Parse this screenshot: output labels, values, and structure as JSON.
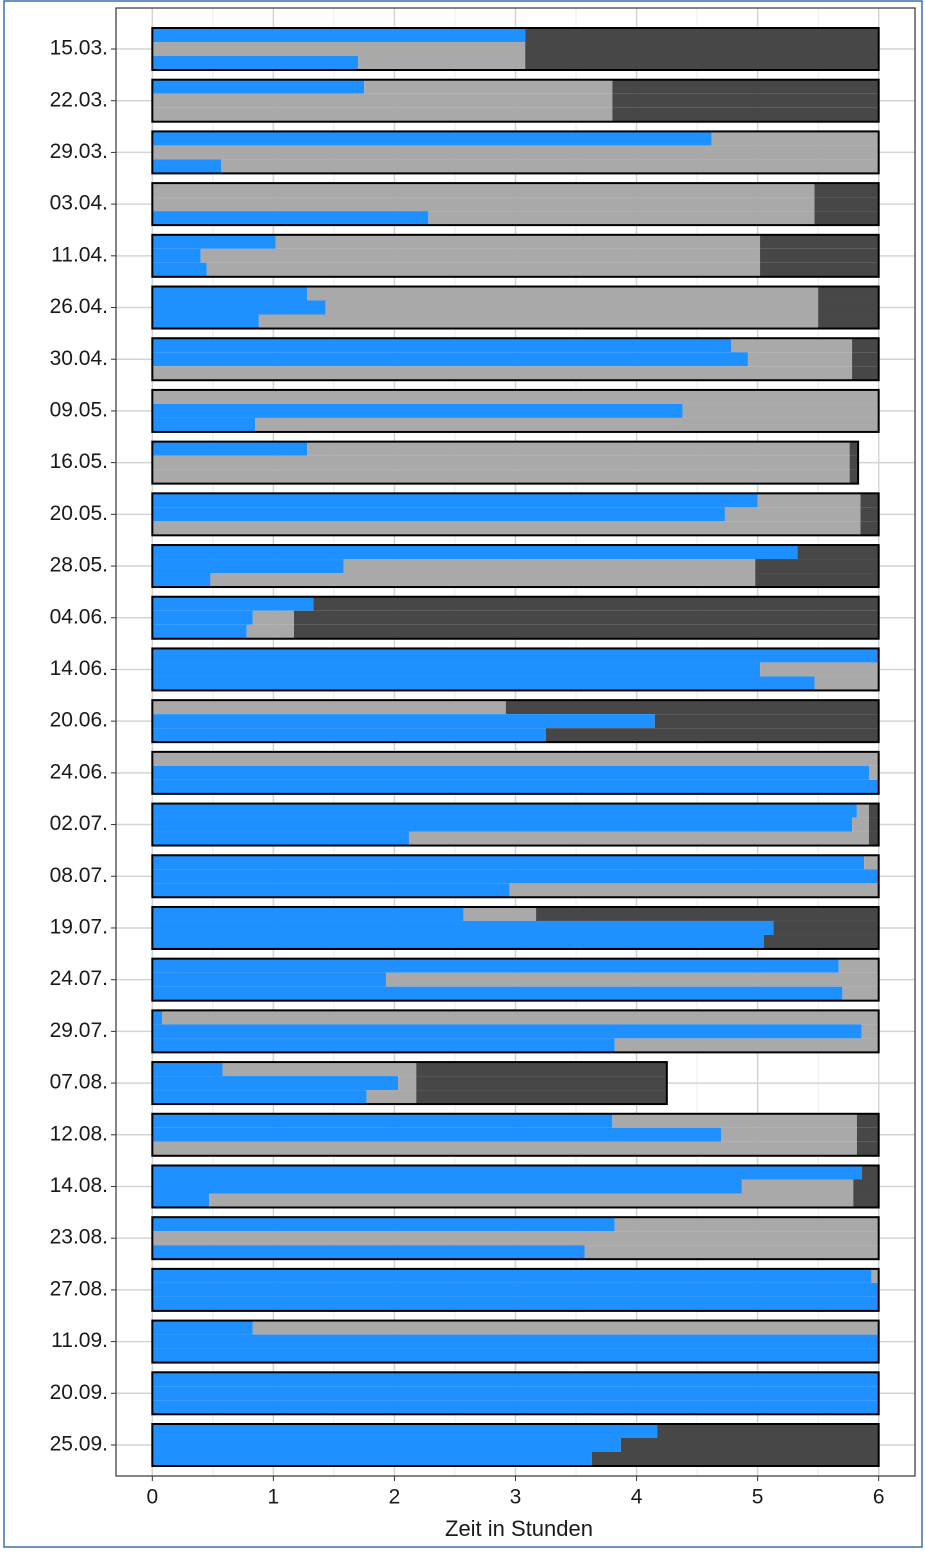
{
  "chart_data": {
    "type": "bar",
    "orientation": "horizontal",
    "stacked": true,
    "x_label": "Zeit in Stunden",
    "categories": [
      "15.03.",
      "22.03.",
      "29.03.",
      "03.04.",
      "11.04.",
      "26.04.",
      "30.04.",
      "09.05.",
      "16.05.",
      "20.05.",
      "28.05.",
      "04.06.",
      "14.06.",
      "20.06.",
      "24.06.",
      "02.07.",
      "08.07.",
      "19.07.",
      "24.07.",
      "29.07.",
      "07.08.",
      "12.08.",
      "14.08.",
      "23.08.",
      "27.08.",
      "11.09.",
      "20.09.",
      "25.09."
    ],
    "series": [
      {
        "color": "#1e90ff",
        "values": [
          [
            3.08,
            0,
            1.7
          ],
          [
            1.75,
            0,
            0
          ],
          [
            4.62,
            0,
            0.57
          ],
          [
            0,
            0,
            2.28
          ],
          [
            1.02,
            0.4,
            0.45
          ],
          [
            1.28,
            1.43,
            0.88
          ],
          [
            4.78,
            4.92,
            0
          ],
          [
            0,
            4.38,
            0.85
          ],
          [
            1.28,
            0,
            0
          ],
          [
            5.0,
            4.73,
            0
          ],
          [
            5.33,
            1.58,
            0.48
          ],
          [
            1.33,
            0.83,
            0.78
          ],
          [
            6,
            5.02,
            5.47
          ],
          [
            0,
            4.15,
            3.25
          ],
          [
            0,
            5.92,
            6
          ],
          [
            5.82,
            5.78,
            2.12
          ],
          [
            5.88,
            6,
            2.95
          ],
          [
            2.57,
            5.13,
            5.05
          ],
          [
            5.67,
            1.93,
            5.7
          ],
          [
            0.08,
            5.86,
            3.82
          ],
          [
            0.58,
            2.03,
            1.77
          ],
          [
            3.8,
            4.7,
            0
          ],
          [
            5.86,
            4.87,
            0.47
          ],
          [
            3.82,
            0,
            3.57
          ],
          [
            5.94,
            6,
            6
          ],
          [
            0.83,
            6,
            6
          ],
          [
            6,
            6,
            6
          ],
          [
            4.17,
            3.87,
            3.63
          ]
        ]
      },
      {
        "color": "#a9a9a9",
        "values": [
          [
            0,
            3.08,
            1.38
          ],
          [
            2.05,
            3.8,
            3.8
          ],
          [
            1.38,
            6,
            5.43
          ],
          [
            5.47,
            5.47,
            3.19
          ],
          [
            4.0,
            4.62,
            4.57
          ],
          [
            4.22,
            4.07,
            4.62
          ],
          [
            1.0,
            0.86,
            5.78
          ],
          [
            6,
            1.62,
            5.15
          ],
          [
            4.48,
            5.76,
            5.76
          ],
          [
            0.85,
            1.12,
            5.85
          ],
          [
            0,
            3.4,
            4.5
          ],
          [
            0,
            0.34,
            0.39
          ],
          [
            0,
            0.98,
            0.53
          ],
          [
            2.92,
            0,
            0
          ],
          [
            6,
            0.08,
            0
          ],
          [
            0.1,
            0.14,
            3.8
          ],
          [
            0.12,
            0,
            3.05
          ],
          [
            0.6,
            0,
            0
          ],
          [
            0.33,
            4.07,
            0.3
          ],
          [
            5.92,
            0.14,
            2.18
          ],
          [
            1.6,
            0.15,
            0.41
          ],
          [
            2.02,
            1.12,
            5.82
          ],
          [
            0,
            0.92,
            5.32
          ],
          [
            2.18,
            6,
            2.43
          ],
          [
            0.06,
            0,
            0
          ],
          [
            5.17,
            0,
            0
          ],
          [
            0,
            0,
            0
          ],
          [
            0,
            0,
            0
          ]
        ]
      },
      {
        "color": "#474747",
        "values": [
          [
            2.92,
            2.92,
            2.92
          ],
          [
            2.2,
            2.2,
            2.2
          ],
          [
            0,
            0,
            0
          ],
          [
            0.53,
            0.53,
            0.53
          ],
          [
            0.98,
            0.98,
            0.98
          ],
          [
            0.5,
            0.5,
            0.5
          ],
          [
            0.22,
            0.22,
            0.22
          ],
          [
            0,
            0,
            0
          ],
          [
            0.07,
            0.07,
            0.07
          ],
          [
            0.15,
            0.15,
            0.15
          ],
          [
            0.67,
            1.02,
            1.02
          ],
          [
            4.67,
            4.83,
            4.83
          ],
          [
            0,
            0,
            0
          ],
          [
            3.08,
            1.85,
            2.75
          ],
          [
            0,
            0,
            0
          ],
          [
            0.08,
            0.08,
            0.08
          ],
          [
            0,
            0,
            0
          ],
          [
            2.83,
            0.87,
            0.95
          ],
          [
            0,
            0,
            0
          ],
          [
            0,
            0,
            0
          ],
          [
            2.07,
            2.07,
            2.07
          ],
          [
            0.18,
            0.18,
            0.18
          ],
          [
            0.14,
            0.21,
            0.21
          ],
          [
            0,
            0,
            0
          ],
          [
            0,
            0,
            0
          ],
          [
            0,
            0,
            0
          ],
          [
            0,
            0,
            0
          ],
          [
            1.83,
            2.13,
            2.37
          ]
        ]
      }
    ],
    "xlim": [
      -0.3,
      6.3
    ],
    "xticks": [
      0,
      1,
      2,
      3,
      4,
      5,
      6
    ],
    "xminorticks": [
      0.5,
      1.5,
      2.5,
      3.5,
      4.5,
      5.5
    ],
    "grid": true
  }
}
